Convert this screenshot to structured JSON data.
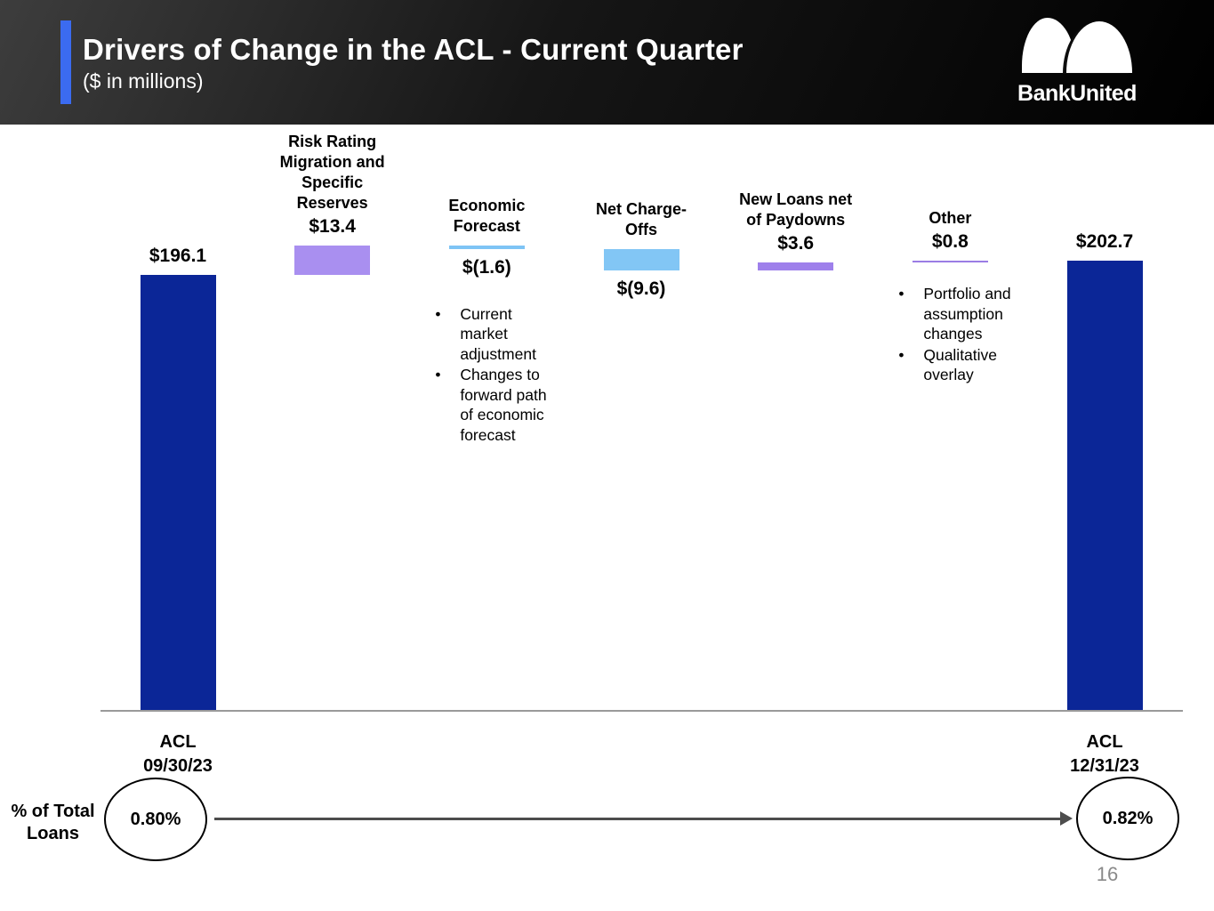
{
  "header": {
    "title": "Drivers of Change in the ACL - Current Quarter",
    "subtitle": "($ in millions)",
    "accent_color": "#3B6BF0",
    "logo_text": "BankUnited"
  },
  "chart_data": {
    "type": "waterfall",
    "unit": "$ in millions",
    "ylim": [
      0,
      215
    ],
    "grid": false,
    "columns": [
      {
        "footer": "ACL\n09/30/23",
        "value": 196.1,
        "value_label": "$196.1",
        "kind": "total",
        "color": "#0B2697"
      },
      {
        "header": "Risk Rating\nMigration and\nSpecific\nReserves",
        "value": 13.4,
        "value_label": "$13.4",
        "kind": "increase",
        "color": "#A98FF0"
      },
      {
        "header": "Economic\nForecast",
        "value": -1.6,
        "value_label": "$(1.6)",
        "kind": "decrease",
        "color": "#7EC4F5",
        "bullets": [
          "Current market adjustment",
          "Changes to forward path of economic forecast"
        ]
      },
      {
        "header": "Net Charge-\nOffs",
        "value": -9.6,
        "value_label": "$(9.6)",
        "kind": "decrease",
        "color": "#82C6F5"
      },
      {
        "header": "New Loans net\nof Paydowns",
        "value": 3.6,
        "value_label": "$3.6",
        "kind": "increase",
        "color": "#9E80EB"
      },
      {
        "header": "Other",
        "value": 0.8,
        "value_label": "$0.8",
        "kind": "increase",
        "color": "#9B7DE4",
        "bullets": [
          "Portfolio and assumption changes",
          "Qualitative overlay"
        ]
      },
      {
        "footer": "ACL\n12/31/23",
        "value": 202.7,
        "value_label": "$202.7",
        "kind": "total",
        "color": "#0B2697"
      }
    ]
  },
  "footer_metrics": {
    "label": "% of Total Loans",
    "start": "0.80%",
    "end": "0.82%"
  },
  "page_number": "16"
}
